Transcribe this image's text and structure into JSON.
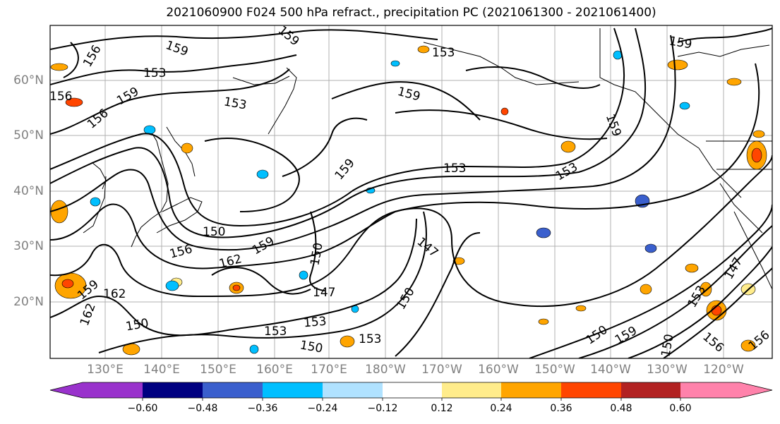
{
  "title": "2021060900 F024 500 hPa refract., precipitation PC (2021061300 - 2021061400)",
  "lat_labels": [
    "60°N",
    "50°N",
    "40°N",
    "30°N",
    "20°N"
  ],
  "lon_labels": [
    "130°E",
    "140°E",
    "150°E",
    "160°E",
    "170°E",
    "180°W",
    "170°W",
    "160°W",
    "150°W",
    "140°W",
    "130°W",
    "120°W"
  ],
  "colorbar": {
    "ticks": [
      "−0.60",
      "−0.48",
      "−0.36",
      "−0.24",
      "−0.12",
      "0.12",
      "0.24",
      "0.36",
      "0.48",
      "0.60"
    ],
    "colors": [
      "#9932CC",
      "#000080",
      "#3A5FCD",
      "#00BFFF",
      "#B0E2FF",
      "#FFFFFF",
      "#FFEC8B",
      "#FFA500",
      "#FF4500",
      "#B22222",
      "#FF82AB"
    ]
  },
  "contour_labels": [
    "156",
    "159",
    "153",
    "156",
    "159",
    "153",
    "156",
    "159",
    "159",
    "153",
    "153",
    "150",
    "156",
    "162",
    "159",
    "150",
    "147",
    "147",
    "162",
    "159",
    "162",
    "150",
    "153",
    "153",
    "150",
    "153",
    "150",
    "159",
    "150",
    "153",
    "147",
    "159",
    "156",
    "150",
    "156",
    "159",
    "159",
    "153"
  ]
}
